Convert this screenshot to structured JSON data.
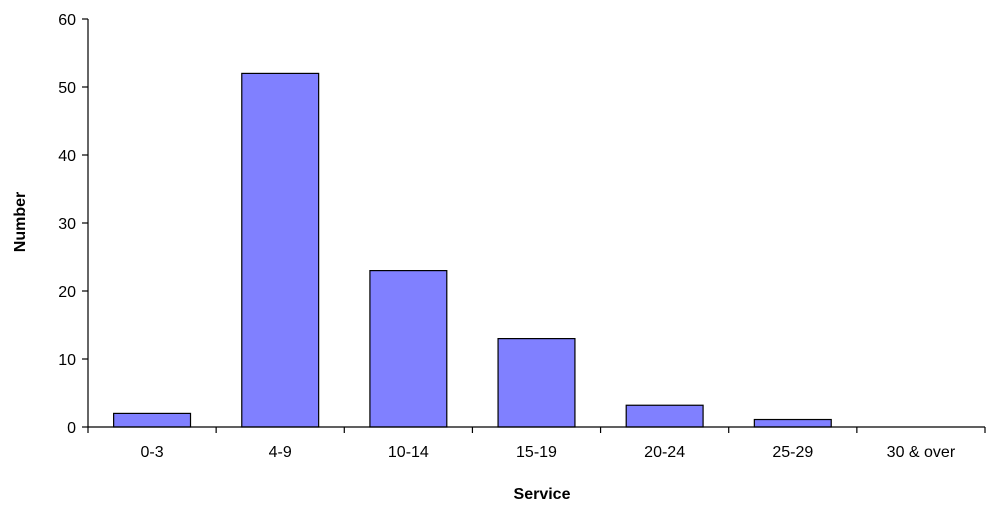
{
  "chart_data": {
    "type": "bar",
    "title": "",
    "xlabel": "Service",
    "ylabel": "Number",
    "categories": [
      "0-3",
      "4-9",
      "10-14",
      "15-19",
      "20-24",
      "25-29",
      "30 & over"
    ],
    "values": [
      2,
      52,
      23,
      13,
      3.2,
      1.1,
      0
    ],
    "ylim": [
      0,
      60
    ],
    "yticks": [
      "0",
      "10",
      "20",
      "30",
      "40",
      "50",
      "60"
    ],
    "grid": false,
    "legend": "none",
    "bar_color": "#8080FF"
  }
}
